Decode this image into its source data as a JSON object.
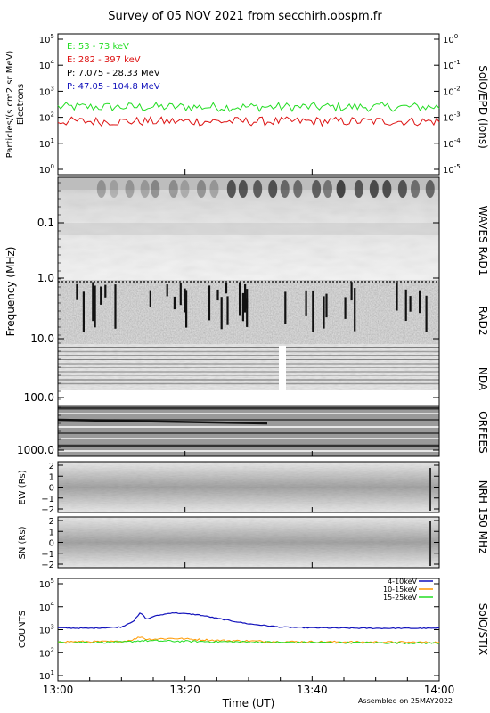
{
  "title": "Survey of 05 NOV 2021 from secchirh.obspm.fr",
  "footer_note": "Assembled on 25MAY2022",
  "colors": {
    "green": "#22dd22",
    "red": "#dd1111",
    "black": "#000000",
    "blue": "#1111bb",
    "orange": "#ff9900"
  },
  "chart_data": [
    {
      "type": "line",
      "panel": "SolO/EPD",
      "ylabel_left": [
        "Particles/(s cm2 sr MeV)",
        "Electrons"
      ],
      "ylabel_right": "SolO/EPD (ions)",
      "yticks_left": [
        "10^0",
        "10^1",
        "10^2",
        "10^3",
        "10^4",
        "10^5"
      ],
      "yticks_right": [
        "10^-5",
        "10^-4",
        "10^-3",
        "10^-2",
        "10^-1",
        "10^0"
      ],
      "ylim": [
        1,
        100000
      ],
      "yscale": "log",
      "legend": [
        {
          "label": "E: 53 - 73 keV",
          "color": "#22dd22"
        },
        {
          "label": "E: 282 - 397 keV",
          "color": "#dd1111"
        },
        {
          "label": "P: 7.075 - 28.33 MeV",
          "color": "#000000"
        },
        {
          "label": "P: 47.05 - 104.8 MeV",
          "color": "#1111bb"
        }
      ],
      "series": [
        {
          "name": "E: 53 - 73 keV",
          "level": 250
        },
        {
          "name": "E: 282 - 397 keV",
          "level": 70
        }
      ]
    },
    {
      "type": "heatmap",
      "panel": "Radio spectrogram",
      "ylabel": "Frequency (MHz)",
      "yscale": "log",
      "yticks": [
        "0.1",
        "1.0",
        "10.0",
        "100.0",
        "1000.0"
      ],
      "instruments": [
        "WAVES RAD1",
        "RAD2",
        "NDA",
        "ORFEES"
      ]
    },
    {
      "type": "heatmap",
      "panel": "NRH 150 MHz",
      "label": "NRH 150 MHz",
      "ew_ylabel": "EW (Rs)",
      "sn_ylabel": "SN (Rs)",
      "yticks": [
        "-2",
        "-1",
        "0",
        "1",
        "2"
      ]
    },
    {
      "type": "line",
      "panel": "SolO/STIX",
      "ylabel_left": "COUNTS",
      "ylabel_right": "SolO/STIX",
      "yscale": "log",
      "ylim": [
        10,
        100000
      ],
      "yticks": [
        "10^1",
        "10^2",
        "10^3",
        "10^4",
        "10^5"
      ],
      "legend": [
        {
          "label": "4-10keV",
          "color": "#1111bb"
        },
        {
          "label": "10-15keV",
          "color": "#ff9900"
        },
        {
          "label": "15-25keV",
          "color": "#22dd22"
        }
      ],
      "series": [
        {
          "name": "4-10keV",
          "points": [
            [
              0,
              1200
            ],
            [
              5,
              1150
            ],
            [
              10,
              1300
            ],
            [
              12,
              2500
            ],
            [
              13,
              5500
            ],
            [
              14,
              2800
            ],
            [
              15,
              3800
            ],
            [
              18,
              5500
            ],
            [
              22,
              4500
            ],
            [
              26,
              2800
            ],
            [
              30,
              1800
            ],
            [
              35,
              1300
            ],
            [
              40,
              1200
            ],
            [
              50,
              1150
            ],
            [
              60,
              1150
            ]
          ]
        },
        {
          "name": "10-15keV",
          "points": [
            [
              0,
              300
            ],
            [
              10,
              300
            ],
            [
              12,
              380
            ],
            [
              13,
              500
            ],
            [
              14,
              380
            ],
            [
              18,
              420
            ],
            [
              25,
              340
            ],
            [
              35,
              300
            ],
            [
              60,
              280
            ]
          ]
        },
        {
          "name": "15-25keV",
          "points": [
            [
              0,
              280
            ],
            [
              10,
              280
            ],
            [
              13,
              330
            ],
            [
              20,
              310
            ],
            [
              35,
              280
            ],
            [
              60,
              260
            ]
          ]
        }
      ]
    }
  ],
  "xaxis": {
    "ticks": [
      "13:00",
      "13:20",
      "13:40",
      "14:00"
    ],
    "label": "Time (UT)"
  },
  "panel_labels": {
    "epd_right": "SolO/EPD (ions)",
    "rad1": "WAVES RAD1",
    "rad2": "RAD2",
    "nda": "NDA",
    "orfees": "ORFEES",
    "nrh": "NRH 150 MHz",
    "stix": "SolO/STIX"
  }
}
